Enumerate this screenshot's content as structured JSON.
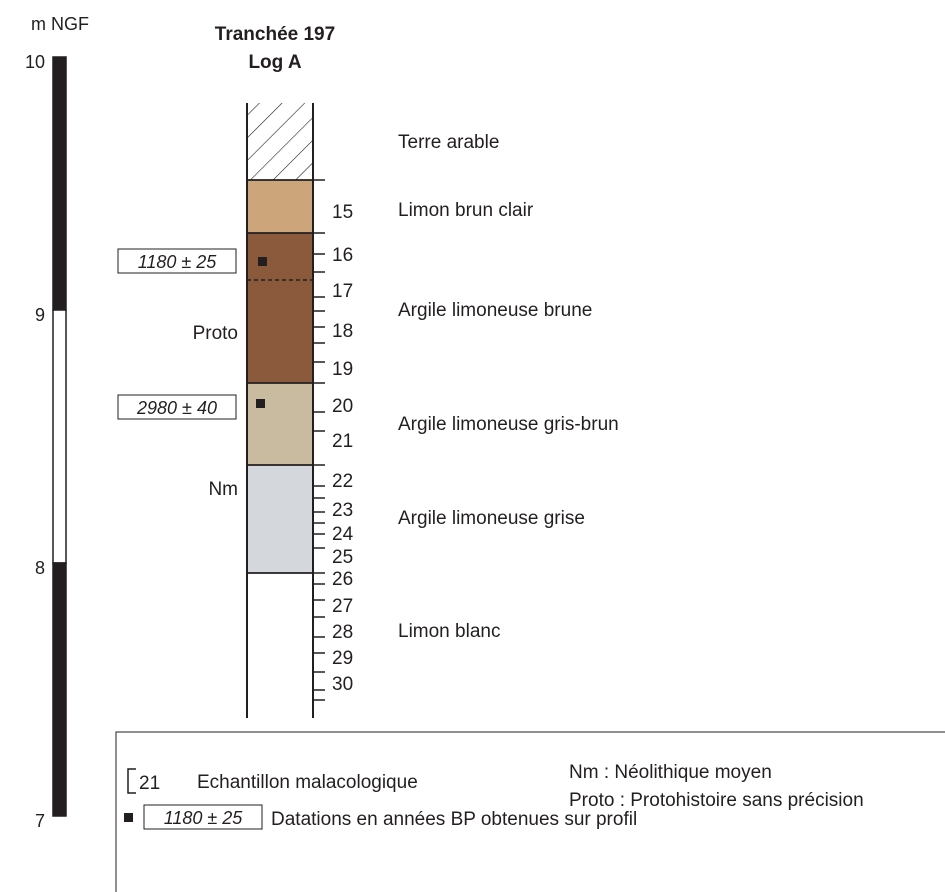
{
  "title": {
    "line1": "Tranchée 197",
    "line2": "Log A"
  },
  "scale": {
    "unit": "m NGF",
    "ticks": [
      {
        "label": "10",
        "value": 10
      },
      {
        "label": "9",
        "value": 9
      },
      {
        "label": "8",
        "value": 8
      },
      {
        "label": "7",
        "value": 7
      }
    ],
    "bands": [
      {
        "from": 10,
        "to": 9,
        "fill": "#231f20"
      },
      {
        "from": 9,
        "to": 8,
        "fill": "#ffffff"
      },
      {
        "from": 8,
        "to": 7,
        "fill": "#231f20"
      }
    ]
  },
  "layers": [
    {
      "label": "Terre arable",
      "pattern": "hatch",
      "color": "#ffffff"
    },
    {
      "label": "Limon brun clair",
      "color": "#cca57b"
    },
    {
      "label": "Argile limoneuse brune",
      "color": "#8b5a3c"
    },
    {
      "label": "Argile limoneuse gris-brun",
      "color": "#c8bb9f"
    },
    {
      "label": "Argile limoneuse grise",
      "color": "#d4d7db"
    },
    {
      "label": "Limon blanc",
      "color": "#ffffff"
    }
  ],
  "samples": [
    "15",
    "16",
    "17",
    "18",
    "19",
    "20",
    "21",
    "22",
    "23",
    "24",
    "25",
    "26",
    "27",
    "28",
    "29",
    "30"
  ],
  "periods": [
    {
      "label": "Proto"
    },
    {
      "label": "Nm"
    }
  ],
  "datings": [
    {
      "label": "1180 ± 25"
    },
    {
      "label": "2980 ± 40"
    }
  ],
  "legend": {
    "sample_number": "21",
    "sample_label": "Echantillon malacologique",
    "nm_label": "Nm : Néolithique moyen",
    "proto_label": "Proto : Protohistoire sans précision",
    "dating_example": "1180 ± 25",
    "dating_label": "Datations en années BP obtenues sur profil"
  }
}
